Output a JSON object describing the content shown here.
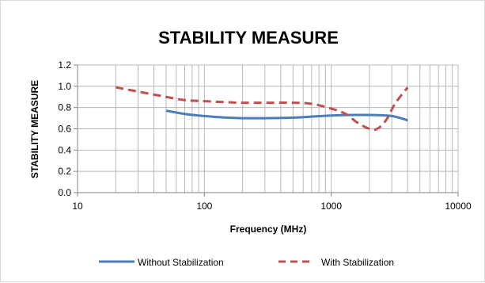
{
  "chart_data": {
    "type": "line",
    "title": "STABILITY MEASURE",
    "xlabel": "Frequency (MHz)",
    "ylabel": "STABILITY MEASURE",
    "x_scale": "log",
    "xlim": [
      10,
      10000
    ],
    "ylim": [
      0,
      1.2
    ],
    "x_ticks": [
      "10",
      "100",
      "1000",
      "10000"
    ],
    "y_ticks": [
      "0.0",
      "0.2",
      "0.4",
      "0.6",
      "0.8",
      "1.0",
      "1.2"
    ],
    "grid": "vertical minor and major on log x; horizontal at y ticks",
    "legend_position": "bottom",
    "series": [
      {
        "name": "Without Stabilization",
        "style": "solid",
        "color": "#4a7ebb",
        "x": [
          50,
          70,
          100,
          150,
          200,
          300,
          500,
          700,
          1000,
          1500,
          2000,
          3000,
          4000
        ],
        "y": [
          0.77,
          0.74,
          0.72,
          0.705,
          0.7,
          0.7,
          0.705,
          0.715,
          0.725,
          0.73,
          0.73,
          0.72,
          0.68
        ]
      },
      {
        "name": "With Stabilization",
        "style": "dashed",
        "color": "#c0504d",
        "x": [
          20,
          30,
          50,
          70,
          100,
          150,
          200,
          300,
          500,
          700,
          1000,
          1300,
          1600,
          2000,
          2300,
          2700,
          3200,
          4000
        ],
        "y": [
          0.99,
          0.95,
          0.9,
          0.87,
          0.86,
          0.85,
          0.845,
          0.845,
          0.845,
          0.835,
          0.79,
          0.74,
          0.66,
          0.6,
          0.6,
          0.68,
          0.84,
          0.99
        ]
      }
    ]
  }
}
